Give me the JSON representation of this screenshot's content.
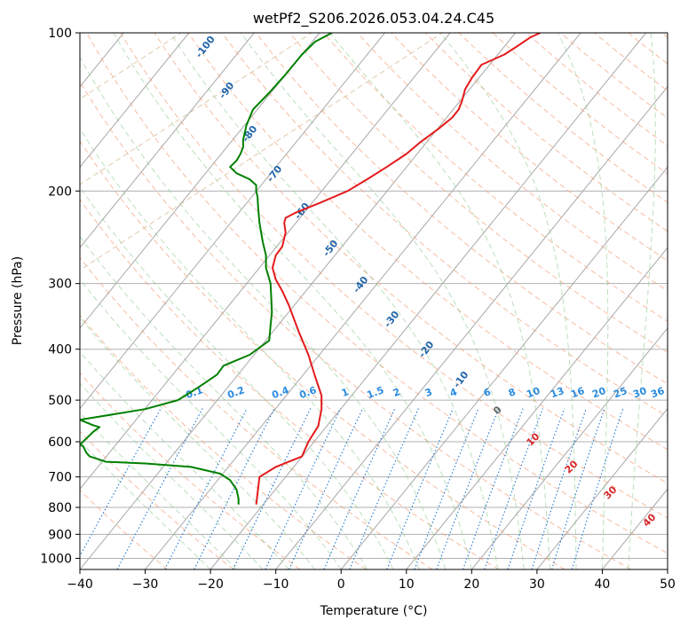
{
  "chart_data": {
    "type": "line",
    "title": "wetPf2_S206.2026.053.04.24.C45",
    "xlabel": "Temperature (°C)",
    "ylabel": "Pressure (hPa)",
    "xlim": [
      -40,
      50
    ],
    "ylim": [
      1050,
      100
    ],
    "y_scale": "log",
    "grid": true,
    "x_ticks": [
      -40,
      -30,
      -20,
      -10,
      0,
      10,
      20,
      30,
      40,
      50
    ],
    "y_ticks": [
      100,
      200,
      300,
      400,
      500,
      600,
      700,
      800,
      900,
      1000
    ],
    "isotherm_labels": [
      "-100",
      "-90",
      "-80",
      "-70",
      "-60",
      "-50",
      "-40",
      "-30",
      "-20",
      "-10"
    ],
    "mixing_ratio_labels": [
      "0.1",
      "0.2",
      "0.4",
      "0.6",
      "1",
      "1.5",
      "2",
      "3",
      "4",
      "6",
      "8",
      "10",
      "13",
      "16",
      "20",
      "25",
      "30",
      "36"
    ],
    "moist_adiabat_labels": [
      "0",
      "10",
      "20",
      "30",
      "40"
    ],
    "series": [
      {
        "color": "#e41a1c",
        "x": [
          -13.0,
          -12.5,
          -10,
          -6,
          -5,
          -3.5,
          -3,
          -3,
          -4,
          -5,
          -6.5,
          -8,
          -9,
          -10,
          -10.5,
          -10,
          -9,
          -8.5,
          -8.7,
          -8.5,
          -7,
          -3,
          1,
          4,
          7,
          10,
          12,
          15,
          17,
          18,
          18.5,
          19,
          20,
          21.5,
          25,
          27,
          29,
          30.5
        ],
        "y": [
          790,
          700,
          670,
          640,
          600,
          560,
          520,
          490,
          450,
          410,
          370,
          330,
          310,
          295,
          280,
          265,
          255,
          240,
          230,
          225,
          220,
          210,
          200,
          190,
          180,
          170,
          162,
          152,
          145,
          140,
          135,
          128,
          122,
          115,
          110,
          106,
          102,
          100
        ]
      },
      {
        "color": "#008000",
        "x": [
          -15.7,
          -15.7,
          -16,
          -17,
          -18.5,
          -23,
          -30,
          -36,
          -38.5,
          -39,
          -39.5,
          -40,
          -38,
          -37,
          -38,
          -40,
          -30,
          -25,
          -22.7,
          -21,
          -19,
          -18,
          -14,
          -11,
          -10.8,
          -10.6,
          -10.8,
          -11.5,
          -11.5,
          -12,
          -12.5,
          -12.7,
          -12.8,
          -13,
          -13,
          -14,
          -16,
          -17,
          -16,
          -15.4,
          -15,
          -15,
          -14.5,
          -13.5,
          -11,
          -8.5,
          -6,
          -4,
          -1.4
        ],
        "y": [
          790,
          770,
          740,
          710,
          690,
          670,
          660,
          655,
          640,
          630,
          612,
          608,
          575,
          563,
          558,
          545,
          520,
          500,
          480,
          465,
          447,
          430,
          410,
          385,
          360,
          340,
          300,
          280,
          265,
          250,
          230,
          215,
          205,
          200,
          195,
          190,
          185,
          180,
          175,
          170,
          165,
          160,
          150,
          140,
          130,
          120,
          110,
          104,
          100
        ]
      }
    ]
  }
}
